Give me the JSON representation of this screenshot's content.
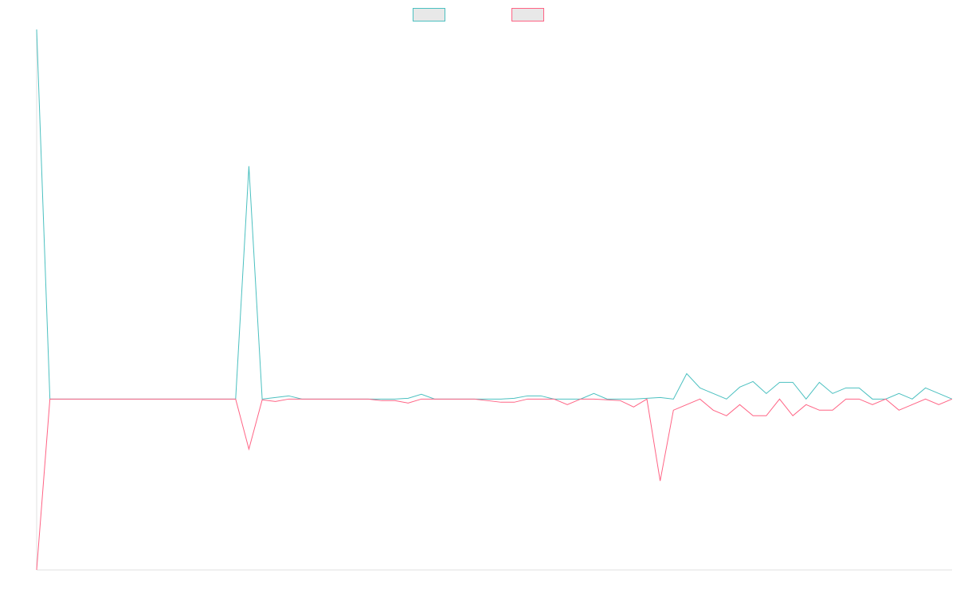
{
  "chart_data": {
    "type": "line",
    "title": "",
    "xlabel": "",
    "ylabel": "",
    "grid": false,
    "legend_position": "top-center",
    "x": [
      0,
      1,
      2,
      3,
      4,
      5,
      6,
      7,
      8,
      9,
      10,
      11,
      12,
      13,
      14,
      15,
      16,
      17,
      18,
      19,
      20,
      21,
      22,
      23,
      24,
      25,
      26,
      27,
      28,
      29,
      30,
      31,
      32,
      33,
      34,
      35,
      36,
      37,
      38,
      39,
      40,
      41,
      42,
      43,
      44,
      45,
      46,
      47,
      48,
      49,
      50,
      51,
      52,
      53,
      54,
      55,
      56,
      57,
      58,
      59,
      60,
      61,
      62,
      63,
      64,
      65,
      66,
      67,
      68,
      69
    ],
    "ylim": [
      -215,
      465
    ],
    "series": [
      {
        "name": "",
        "color": "#4bc0c0",
        "fill": "#e8e8e8",
        "values": [
          465,
          0,
          0,
          0,
          0,
          0,
          0,
          0,
          0,
          0,
          0,
          0,
          0,
          0,
          0,
          0,
          293,
          0,
          2,
          4,
          0,
          0,
          0,
          0,
          0,
          0,
          0,
          0,
          1,
          6,
          0,
          0,
          0,
          0,
          0,
          0,
          1,
          4,
          4,
          0,
          0,
          0,
          7,
          0,
          0,
          0,
          1,
          2,
          0,
          32,
          14,
          7,
          0,
          15,
          22,
          7,
          21,
          21,
          0,
          21,
          7,
          14,
          14,
          0,
          0,
          7,
          0,
          14,
          7,
          0
        ]
      },
      {
        "name": "",
        "color": "#ff6384",
        "fill": "#e8e8e8",
        "values": [
          -215,
          0,
          0,
          0,
          0,
          0,
          0,
          0,
          0,
          0,
          0,
          0,
          0,
          0,
          0,
          0,
          -63,
          -1,
          -3,
          0,
          0,
          0,
          0,
          0,
          0,
          0,
          -2,
          -2,
          -5,
          0,
          0,
          0,
          0,
          0,
          -2,
          -4,
          -4,
          0,
          0,
          0,
          -7,
          0,
          0,
          -1,
          -2,
          -10,
          0,
          -103,
          -14,
          -7,
          0,
          -14,
          -21,
          -7,
          -21,
          -21,
          0,
          -21,
          -7,
          -14,
          -14,
          0,
          0,
          -7,
          0,
          -14,
          -7,
          0,
          -7,
          0
        ]
      }
    ]
  }
}
